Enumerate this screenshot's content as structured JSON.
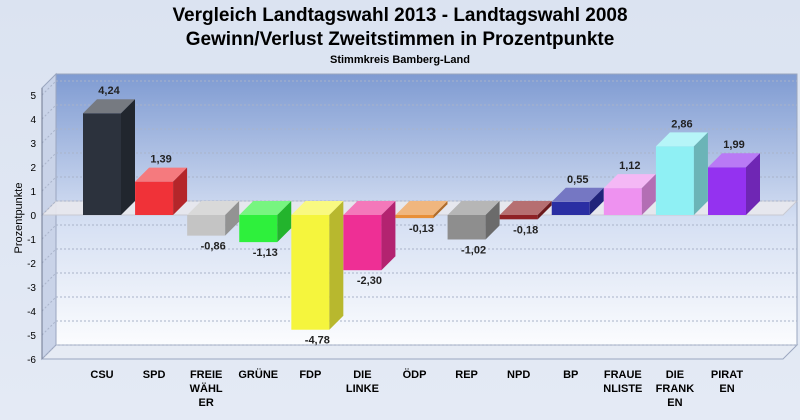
{
  "title_line1": "Vergleich Landtagswahl 2013 - Landtagswahl 2008",
  "title_line2": "Gewinn/Verlust Zweitstimmen in Prozentpunkte",
  "subtitle": "Stimmkreis Bamberg-Land",
  "chart_data": {
    "type": "bar",
    "title": "Vergleich Landtagswahl 2013 - Landtagswahl 2008 / Gewinn/Verlust Zweitstimmen in Prozentpunkte",
    "subtitle": "Stimmkreis Bamberg-Land",
    "ylabel": "Prozentpunkte",
    "xlabel": "",
    "ylim": [
      -6,
      5
    ],
    "yticks": [
      5,
      4,
      3,
      2,
      1,
      0,
      -1,
      -2,
      -3,
      -4,
      -5,
      -6
    ],
    "grid": true,
    "categories": [
      [
        "CSU"
      ],
      [
        "SPD"
      ],
      [
        "FREIE",
        "WÄHL",
        "ER"
      ],
      [
        "GRÜNE"
      ],
      [
        "FDP"
      ],
      [
        "DIE",
        "LINKE"
      ],
      [
        "ÖDP"
      ],
      [
        "REP"
      ],
      [
        "NPD"
      ],
      [
        "BP"
      ],
      [
        "FRAUE",
        "NLISTE"
      ],
      [
        "DIE",
        "FRANK",
        "EN"
      ],
      [
        "PIRAT",
        "EN"
      ]
    ],
    "values": [
      4.24,
      1.39,
      -0.86,
      -1.13,
      -4.78,
      -2.3,
      -0.13,
      -1.02,
      -0.18,
      0.55,
      1.12,
      2.86,
      1.99
    ],
    "value_labels": [
      "4,24",
      "1,39",
      "-0,86",
      "-1,13",
      "-4,78",
      "-2,30",
      "-0,13",
      "-1,02",
      "-0,18",
      "0,55",
      "1,12",
      "2,86",
      "1,99"
    ],
    "colors": [
      "#2c323d",
      "#f03238",
      "#c4c4c4",
      "#2ef03c",
      "#f5f53d",
      "#ee2f95",
      "#e88f38",
      "#8e8e8e",
      "#8f2125",
      "#2a2ea3",
      "#ee92f0",
      "#8ff0f4",
      "#9432f0"
    ]
  }
}
